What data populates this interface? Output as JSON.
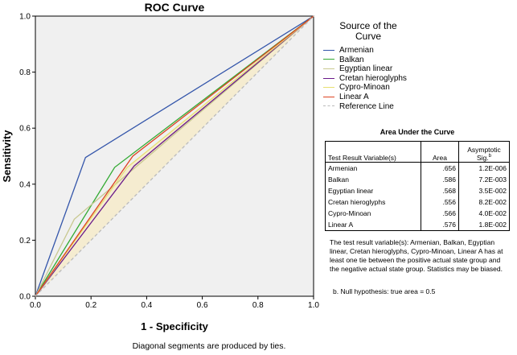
{
  "chart_data": {
    "type": "line",
    "title": "ROC Curve",
    "xlabel": "1 - Specificity",
    "ylabel": "Sensitivity",
    "xlim": [
      0,
      1
    ],
    "ylim": [
      0,
      1
    ],
    "xticks": [
      "0.0",
      "0.2",
      "0.4",
      "0.6",
      "0.8",
      "1.0"
    ],
    "yticks": [
      "0.0",
      "0.2",
      "0.4",
      "0.6",
      "0.8",
      "1.0"
    ],
    "grid": false,
    "legend_title": "Source of the Curve",
    "legend_position": "right",
    "series": [
      {
        "name": "Armenian",
        "color": "#3355aa",
        "points": [
          [
            0,
            0
          ],
          [
            0.18,
            0.495
          ],
          [
            1,
            1
          ]
        ]
      },
      {
        "name": "Balkan",
        "color": "#33aa33",
        "points": [
          [
            0,
            0
          ],
          [
            0.285,
            0.46
          ],
          [
            1,
            1
          ]
        ]
      },
      {
        "name": "Egyptian linear",
        "color": "#c8c890",
        "points": [
          [
            0,
            0
          ],
          [
            0.14,
            0.275
          ],
          [
            1,
            1
          ]
        ]
      },
      {
        "name": "Cretan hieroglyphs",
        "color": "#6a1a8a",
        "points": [
          [
            0,
            0
          ],
          [
            0.355,
            0.465
          ],
          [
            1,
            1
          ]
        ]
      },
      {
        "name": "Cypro-Minoan",
        "color": "#e8e070",
        "points": [
          [
            0,
            0
          ],
          [
            0.33,
            0.46
          ],
          [
            1,
            1
          ]
        ]
      },
      {
        "name": "Linear A",
        "color": "#dd4422",
        "points": [
          [
            0,
            0
          ],
          [
            0.35,
            0.5
          ],
          [
            1,
            1
          ]
        ]
      },
      {
        "name": "Reference Line",
        "color": "#bbbbbb",
        "dashed": true,
        "points": [
          [
            0,
            0
          ],
          [
            1,
            1
          ]
        ]
      }
    ]
  },
  "auc_table": {
    "title": "Area Under the Curve",
    "headers": [
      "Test Result Variable(s)",
      "Area",
      "Asymptotic Sig."
    ],
    "header_superscript": "b",
    "rows": [
      {
        "variable": "Armenian",
        "area": ".656",
        "sig": "1.2E-006"
      },
      {
        "variable": "Balkan",
        "area": ".586",
        "sig": "7.2E-003"
      },
      {
        "variable": "Egyptian linear",
        "area": ".568",
        "sig": "3.5E-002"
      },
      {
        "variable": "Cretan hieroglyphs",
        "area": ".556",
        "sig": "8.2E-002"
      },
      {
        "variable": "Cypro-Minoan",
        "area": ".566",
        "sig": "4.0E-002"
      },
      {
        "variable": "Linear A",
        "area": ".576",
        "sig": "1.8E-002"
      }
    ],
    "note": "The test result variable(s): Armenian, Balkan, Egyptian linear, Cretan hieroglyphs, Cypro-Minoan, Linear A has at least one tie between the positive actual state group and the negative actual state group. Statistics may be biased.",
    "footnote": "b. Null hypothesis: true area = 0.5"
  },
  "bottom_note": "Diagonal segments are produced by ties."
}
